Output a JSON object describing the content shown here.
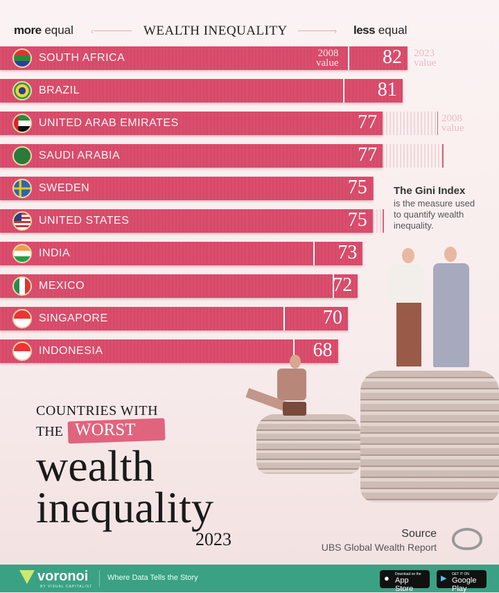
{
  "header": {
    "left_bold": "more",
    "left_rest": "equal",
    "title": "WEALTH INEQUALITY",
    "right_bold": "less",
    "right_rest": "equal"
  },
  "annotations": {
    "label_2008": "2008",
    "label_2023": "2023",
    "value_word": "value"
  },
  "gini": {
    "heading": "The Gini Index",
    "text": "is the measure used to quantify wealth inequality."
  },
  "title": {
    "line1": "COUNTRIES WITH",
    "the": "THE",
    "highlight": "WORST",
    "line3": "wealth",
    "line4": "inequality",
    "year": "2023"
  },
  "source": {
    "label": "Source",
    "name": "UBS Global Wealth Report"
  },
  "footer": {
    "brand": "voronoi",
    "brand_sub": "BY VISUAL CAPITALIST",
    "tagline": "Where Data Tells the Story",
    "app_store_small": "Download on the",
    "app_store": "App Store",
    "google_small": "GET IT ON",
    "google": "Google Play"
  },
  "colors": {
    "bar": "#d94f6c",
    "footer": "#3ba184",
    "highlight": "#e0647d"
  },
  "chart_data": {
    "type": "bar",
    "orientation": "horizontal",
    "title": "WEALTH INEQUALITY",
    "categories": [
      "SOUTH AFRICA",
      "BRAZIL",
      "UNITED ARAB EMIRATES",
      "SAUDI ARABIA",
      "SWEDEN",
      "UNITED STATES",
      "INDIA",
      "MEXICO",
      "SINGAPORE",
      "INDONESIA"
    ],
    "flags": [
      "za",
      "br",
      "ae",
      "sa",
      "se",
      "us",
      "in",
      "mx",
      "sg",
      "id"
    ],
    "series": [
      {
        "name": "2023 value",
        "values": [
          82,
          81,
          77,
          77,
          75,
          75,
          73,
          72,
          70,
          68
        ]
      },
      {
        "name": "2008 value",
        "values": [
          70,
          69,
          88,
          89,
          75,
          77,
          63,
          67,
          57,
          59
        ]
      }
    ]
  }
}
